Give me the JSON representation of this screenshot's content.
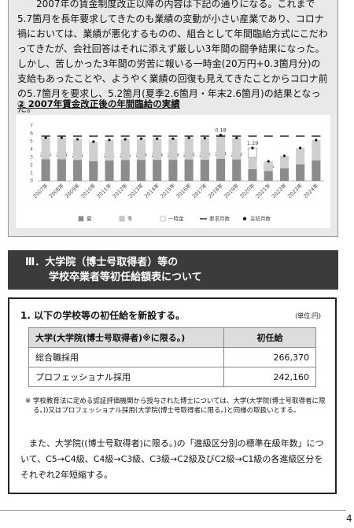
{
  "intro": "2007年の賃金制度改正以降の内容は下記の通りになる。これまで5.7箇月を長年要求してきたのも業績の変動が小さい産業であり、コロナ禍においては、業績が悪化するものの、組合として年間臨給方式にこだわってきたが、会社回答はそれに添えず厳しい3年間の闘争結果になった。しかし、苦しかった3年間の労苦に報いる一時金(20万円+0.3箇月分)の支給もあったことや、ようやく業績の回復も見えてきたことからコロナ前の5.7箇月を要求し、5.2箇月(夏季2.6箇月・年末2.6箇月)の結果となった。",
  "chart_heading": "② 2007年賃金改正後の年間臨給の実績",
  "chart_data": {
    "type": "bar",
    "categories": [
      "2007年",
      "2008年",
      "2009年",
      "2010年",
      "2011年",
      "2012年",
      "2013年",
      "2014年",
      "2015年",
      "2016年",
      "2017年",
      "2018年",
      "2019年",
      "2020年",
      "2021年",
      "2022年",
      "2023年",
      "2024年"
    ],
    "series": [
      {
        "name": "夏",
        "type": "bar",
        "color": "#8c8c8c",
        "labels": true,
        "values": [
          2.75,
          2.75,
          2.65,
          2.5,
          2.61,
          2.65,
          2.69,
          2.69,
          2.69,
          2.74,
          2.72,
          2.83,
          2.74,
          1.5,
          1.25,
          1.6,
          2.1,
          2.6
        ]
      },
      {
        "name": "冬",
        "type": "bar",
        "color": "#cfcfcf",
        "values": [
          2.75,
          2.75,
          2.65,
          2.5,
          2.61,
          2.65,
          2.69,
          2.69,
          2.69,
          2.74,
          2.72,
          2.83,
          2.74,
          1.5,
          1.25,
          1.6,
          2.1,
          2.6
        ]
      },
      {
        "name": "一時金",
        "type": "bar",
        "color": "#ffffff",
        "labels": true,
        "values": [
          null,
          null,
          null,
          null,
          null,
          null,
          null,
          null,
          null,
          null,
          null,
          0.18,
          null,
          1.19,
          null,
          null,
          null,
          null
        ]
      },
      {
        "name": "要求月数",
        "type": "dash",
        "color": "#333333",
        "values": [
          5.7,
          5.7,
          5.7,
          5.7,
          5.7,
          5.7,
          5.7,
          5.7,
          5.7,
          5.7,
          5.7,
          5.7,
          5.7,
          5.7,
          5.7,
          5.7,
          5.7,
          5.7
        ]
      },
      {
        "name": "妥結月数",
        "type": "dot",
        "color": "#111111",
        "values": [
          5.5,
          5.5,
          5.3,
          5.0,
          5.22,
          5.3,
          5.38,
          5.38,
          5.38,
          5.48,
          5.44,
          5.84,
          5.48,
          4.19,
          2.5,
          3.2,
          4.2,
          5.2
        ]
      }
    ],
    "ylim": [
      0,
      7
    ],
    "yticks": [
      0,
      1,
      2,
      3,
      4,
      5,
      6,
      7
    ],
    "grid": false,
    "legend": "bottom"
  },
  "section": {
    "title_lines": [
      "Ⅲ．大学院（博士号取得者）等の",
      "学校卒業者等初任給額表について"
    ]
  },
  "box": {
    "heading": "1. 以下の学校等の初任給を新設する。",
    "unit": "(単位:円)",
    "table": {
      "header": [
        "大学(大学院(博士号取得者)※に限る。)",
        "初任給"
      ],
      "rows": [
        [
          "総合職採用",
          "266,370"
        ],
        [
          "プロフェッショナル採用",
          "242,160"
        ]
      ]
    },
    "note": "※ 学校教育法に定める認証評価機関から授与された博士については、大学(大学院(博士号取得者に限る。))又はプロフェッショナル採用(大学院(博士号取得者に限る。)と同様の取扱いとする。",
    "paragraph": "また、大学院((博士号取得者)に限る。)の「進級区分別の標準在級年数」について、C5→C4級、C4級→C3級、C3級→C2級及びC2級→C1級の各進級区分をそれぞれ2年短縮する。"
  },
  "page_number": "4"
}
